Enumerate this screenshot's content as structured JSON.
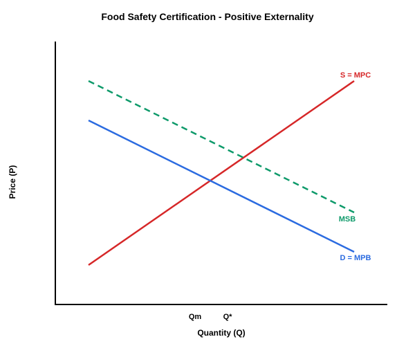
{
  "chart_data": {
    "type": "line",
    "title": "Food Safety Certification - Positive Externality",
    "xlabel": "Quantity (Q)",
    "ylabel": "Price (P)",
    "xlim": [
      0,
      10
    ],
    "ylim": [
      0,
      10
    ],
    "grid": false,
    "x_tick_labels": [
      {
        "label": "Qm",
        "x": 4.67
      },
      {
        "label": "Q*",
        "x": 5.67
      }
    ],
    "series": [
      {
        "name": "S = MPC",
        "color": "#d62728",
        "style": "solid",
        "points": [
          [
            1,
            1.5
          ],
          [
            9,
            8.5
          ]
        ]
      },
      {
        "name": "MSB",
        "color": "#0e9a6a",
        "style": "dashed",
        "points": [
          [
            1,
            8.5
          ],
          [
            9,
            3.5
          ]
        ]
      },
      {
        "name": "D = MPB",
        "color": "#2b6be0",
        "style": "solid",
        "points": [
          [
            1,
            7
          ],
          [
            9,
            2
          ]
        ]
      }
    ]
  }
}
